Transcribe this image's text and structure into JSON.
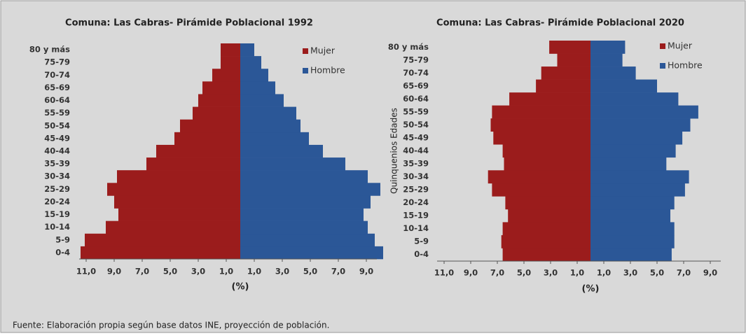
{
  "chart_data": [
    {
      "type": "pyramid",
      "title": "Comuna: Las Cabras-  Pirámide Poblacional 1992",
      "xlabel": "(%)",
      "categories": [
        "0-4",
        "5-9",
        "10-14",
        "15-19",
        "20-24",
        "25-29",
        "30-34",
        "35-39",
        "40-44",
        "45-49",
        "50-54",
        "55-59",
        "60-64",
        "65-69",
        "70-74",
        "75-79",
        "80 y más"
      ],
      "series": [
        {
          "name": "Mujer",
          "color": "#9b1c1c",
          "side": "left",
          "values": [
            11.4,
            11.1,
            9.6,
            8.7,
            9.0,
            9.5,
            8.8,
            6.7,
            6.0,
            4.7,
            4.3,
            3.4,
            3.0,
            2.7,
            2.0,
            1.4,
            1.4
          ]
        },
        {
          "name": "Hombre",
          "color": "#2b5797",
          "side": "right",
          "values": [
            10.2,
            9.6,
            9.1,
            8.8,
            9.3,
            10.0,
            9.1,
            7.5,
            5.9,
            4.9,
            4.3,
            4.0,
            3.1,
            2.5,
            2.0,
            1.5,
            1.0
          ]
        }
      ],
      "left_xticks": [
        {
          "value": 11,
          "label": "11,0"
        },
        {
          "value": 9,
          "label": "9,0"
        },
        {
          "value": 7,
          "label": "7,0"
        },
        {
          "value": 5,
          "label": "5,0"
        },
        {
          "value": 3,
          "label": "3,0"
        },
        {
          "value": 1,
          "label": "1,0"
        }
      ],
      "right_xticks": [
        {
          "value": 1,
          "label": "1,0"
        },
        {
          "value": 3,
          "label": "3,0"
        },
        {
          "value": 5,
          "label": "5,0"
        },
        {
          "value": 7,
          "label": "7,0"
        },
        {
          "value": 9,
          "label": "9,0"
        }
      ]
    },
    {
      "type": "pyramid",
      "title": "Comuna: Las Cabras-  Pirámide Poblacional 2020",
      "xlabel": "(%)",
      "ylabel": "Quinquenios Edades",
      "categories": [
        "0-4",
        "5-9",
        "10-14",
        "15-19",
        "20-24",
        "25-29",
        "30-34",
        "35-39",
        "40-44",
        "45-49",
        "50-54",
        "55-59",
        "60-64",
        "65-69",
        "70-74",
        "75-79",
        "80 y más"
      ],
      "series": [
        {
          "name": "Mujer",
          "color": "#9b1c1c",
          "side": "left",
          "values": [
            6.6,
            6.7,
            6.6,
            6.2,
            6.4,
            7.4,
            7.7,
            6.5,
            6.6,
            7.3,
            7.5,
            7.4,
            6.1,
            4.1,
            3.7,
            2.5,
            3.1
          ]
        },
        {
          "name": "Hombre",
          "color": "#2b5797",
          "side": "right",
          "values": [
            6.1,
            6.3,
            6.3,
            6.0,
            6.3,
            7.1,
            7.4,
            5.7,
            6.4,
            6.9,
            7.5,
            8.1,
            6.6,
            5.0,
            3.4,
            2.4,
            2.6
          ]
        }
      ],
      "left_xticks": [
        {
          "value": 11,
          "label": "11,0"
        },
        {
          "value": 9,
          "label": "9,0"
        },
        {
          "value": 7,
          "label": "7,0"
        },
        {
          "value": 5,
          "label": "5,0"
        },
        {
          "value": 3,
          "label": "3,0"
        },
        {
          "value": 1,
          "label": "1,0"
        }
      ],
      "right_xticks": [
        {
          "value": 1,
          "label": "1,0"
        },
        {
          "value": 3,
          "label": "3,0"
        },
        {
          "value": 5,
          "label": "5,0"
        },
        {
          "value": 7,
          "label": "7,0"
        },
        {
          "value": 9,
          "label": "9,0"
        }
      ]
    }
  ],
  "source": "Fuente: Elaboración propia según base datos INE, proyección de población."
}
